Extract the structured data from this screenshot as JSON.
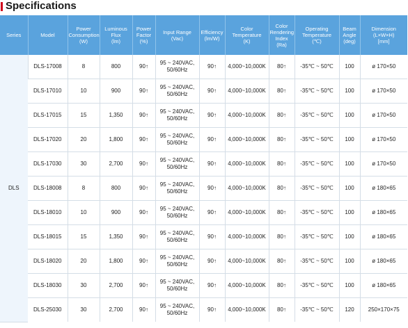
{
  "title": "Specifications",
  "columns": [
    [
      "Series"
    ],
    [
      "Model"
    ],
    [
      "Power",
      "Consumption",
      "(W)"
    ],
    [
      "Luminous",
      "Flux",
      "(lm)"
    ],
    [
      "Power",
      "Factor",
      "(%)"
    ],
    [
      "Input Range",
      "(Vac)"
    ],
    [
      "Efficiency",
      "(lm/W)"
    ],
    [
      "Color",
      "Temperature",
      "(K)"
    ],
    [
      "Color",
      "Rendering",
      "Index",
      "(Ra)"
    ],
    [
      "Operating",
      "Temperature",
      "(℃)"
    ],
    [
      "Beam",
      "Angle",
      "(deg)"
    ],
    [
      "Dimension",
      "(L×W×H)",
      "[mm]"
    ]
  ],
  "series": "DLS",
  "rows": [
    {
      "model": "DLS-17008",
      "power": "8",
      "flux": "800",
      "pf": "90↑",
      "input": [
        "95 ~ 240VAC,",
        "50/60Hz"
      ],
      "efficiency": "90↑",
      "cct": "4,000~10,000K",
      "cri": "80↑",
      "temp": "-35℃ ~ 50℃",
      "beam": "100",
      "dim": "ø 170×50"
    },
    {
      "model": "DLS-17010",
      "power": "10",
      "flux": "900",
      "pf": "90↑",
      "input": [
        "95 ~ 240VAC,",
        "50/60Hz"
      ],
      "efficiency": "90↑",
      "cct": "4,000~10,000K",
      "cri": "80↑",
      "temp": "-35℃ ~ 50℃",
      "beam": "100",
      "dim": "ø 170×50"
    },
    {
      "model": "DLS-17015",
      "power": "15",
      "flux": "1,350",
      "pf": "90↑",
      "input": [
        "95 ~ 240VAC,",
        "50/60Hz"
      ],
      "efficiency": "90↑",
      "cct": "4,000~10,000K",
      "cri": "80↑",
      "temp": "-35℃ ~ 50℃",
      "beam": "100",
      "dim": "ø 170×50"
    },
    {
      "model": "DLS-17020",
      "power": "20",
      "flux": "1,800",
      "pf": "90↑",
      "input": [
        "95 ~ 240VAC,",
        "50/60Hz"
      ],
      "efficiency": "90↑",
      "cct": "4,000~10,000K",
      "cri": "80↑",
      "temp": "-35℃ ~ 50℃",
      "beam": "100",
      "dim": "ø 170×50"
    },
    {
      "model": "DLS-17030",
      "power": "30",
      "flux": "2,700",
      "pf": "90↑",
      "input": [
        "95 ~ 240VAC,",
        "50/60Hz"
      ],
      "efficiency": "90↑",
      "cct": "4,000~10,000K",
      "cri": "80↑",
      "temp": "-35℃ ~ 50℃",
      "beam": "100",
      "dim": "ø 170×50"
    },
    {
      "model": "DLS-18008",
      "power": "8",
      "flux": "800",
      "pf": "90↑",
      "input": [
        "95 ~ 240VAC,",
        "50/60Hz"
      ],
      "efficiency": "90↑",
      "cct": "4,000~10,000K",
      "cri": "80↑",
      "temp": "-35℃ ~ 50℃",
      "beam": "100",
      "dim": "ø 180×65"
    },
    {
      "model": "DLS-18010",
      "power": "10",
      "flux": "900",
      "pf": "90↑",
      "input": [
        "95 ~ 240VAC,",
        "50/60Hz"
      ],
      "efficiency": "90↑",
      "cct": "4,000~10,000K",
      "cri": "80↑",
      "temp": "-35℃ ~ 50℃",
      "beam": "100",
      "dim": "ø 180×65"
    },
    {
      "model": "DLS-18015",
      "power": "15",
      "flux": "1,350",
      "pf": "90↑",
      "input": [
        "95 ~ 240VAC,",
        "50/60Hz"
      ],
      "efficiency": "90↑",
      "cct": "4,000~10,000K",
      "cri": "80↑",
      "temp": "-35℃ ~ 50℃",
      "beam": "100",
      "dim": "ø 180×65"
    },
    {
      "model": "DLS-18020",
      "power": "20",
      "flux": "1,800",
      "pf": "90↑",
      "input": [
        "95 ~ 240VAC,",
        "50/60Hz"
      ],
      "efficiency": "90↑",
      "cct": "4,000~10,000K",
      "cri": "80↑",
      "temp": "-35℃ ~ 50℃",
      "beam": "100",
      "dim": "ø 180×65"
    },
    {
      "model": "DLS-18030",
      "power": "30",
      "flux": "2,700",
      "pf": "90↑",
      "input": [
        "95 ~ 240VAC,",
        "50/60Hz"
      ],
      "efficiency": "90↑",
      "cct": "4,000~10,000K",
      "cri": "80↑",
      "temp": "-35℃ ~ 50℃",
      "beam": "100",
      "dim": "ø 180×65"
    },
    {
      "model": "DLS-25030",
      "power": "30",
      "flux": "2,700",
      "pf": "90↑",
      "input": [
        "95 ~ 240VAC,",
        "50/60Hz"
      ],
      "efficiency": "90↑",
      "cct": "4,000~10,000K",
      "cri": "80↑",
      "temp": "-35℃ ~ 50℃",
      "beam": "120",
      "dim": "250×170×75"
    }
  ],
  "colors": {
    "accent": "#d0021b",
    "header_bg": "#5aa3dd",
    "series_bg": "#eef5fc"
  }
}
